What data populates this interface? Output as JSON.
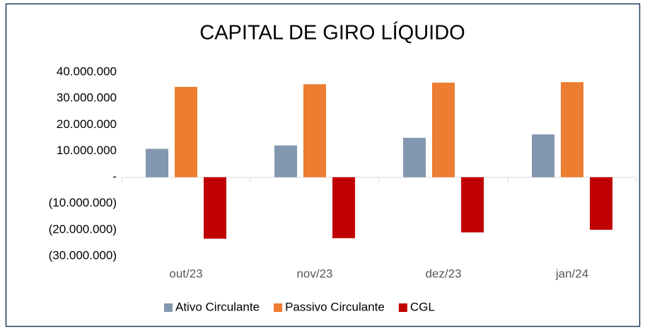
{
  "chart_data": {
    "type": "bar",
    "title": "CAPITAL DE GIRO LÍQUIDO",
    "categories": [
      "out/23",
      "nov/23",
      "dez/23",
      "jan/24"
    ],
    "series": [
      {
        "name": "Ativo Circulante",
        "color": "#8497b0",
        "values": [
          10800000,
          12100000,
          15000000,
          16300000
        ]
      },
      {
        "name": "Passivo Circulante",
        "color": "#ed7d31",
        "values": [
          34400000,
          35400000,
          36000000,
          36200000
        ]
      },
      {
        "name": "CGL",
        "color": "#c00000",
        "values": [
          -23400000,
          -23200000,
          -21000000,
          -20000000
        ]
      }
    ],
    "ylim": [
      -30000000,
      40000000
    ],
    "yticks": [
      {
        "value": -30000000,
        "label": "(30.000.000)"
      },
      {
        "value": -20000000,
        "label": "(20.000.000)"
      },
      {
        "value": -10000000,
        "label": "(10.000.000)"
      },
      {
        "value": 0,
        "label": "-"
      },
      {
        "value": 10000000,
        "label": "10.000.000"
      },
      {
        "value": 20000000,
        "label": "20.000.000"
      },
      {
        "value": 30000000,
        "label": "30.000.000"
      },
      {
        "value": 40000000,
        "label": "40.000.000"
      }
    ],
    "grid": false,
    "legend": "bottom"
  }
}
